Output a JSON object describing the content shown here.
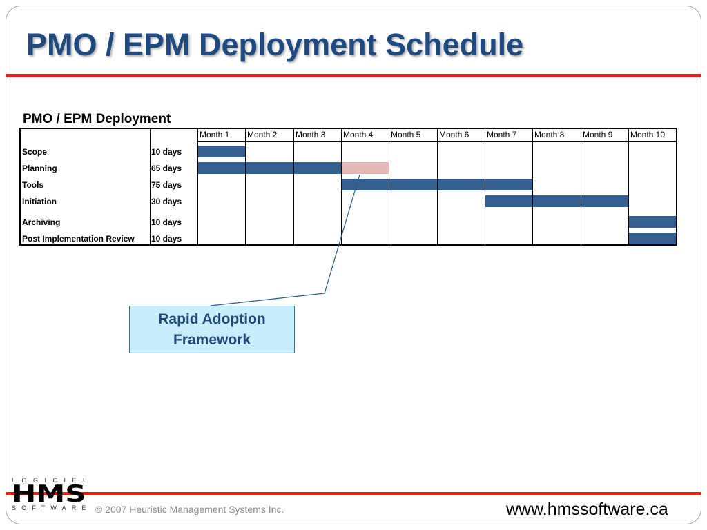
{
  "slide": {
    "title": "PMO / EPM Deployment Schedule"
  },
  "theme_colors": {
    "title": "#1f4a80",
    "accent_line": "#e3201b",
    "callout_fill": "#c9eefb",
    "callout_border": "#3a6c98",
    "callout_text": "#1f497d",
    "frame": "#a6a6a6"
  },
  "chart_data": {
    "type": "bar",
    "orientation": "horizontal",
    "variant": "gantt",
    "title": "PMO / EPM Deployment",
    "x_tick_labels": [
      "Month 1",
      "Month 2",
      "Month 3",
      "Month 4",
      "Month 5",
      "Month 6",
      "Month 7",
      "Month 8",
      "Month 9",
      "Month 10"
    ],
    "xlim": [
      1,
      10
    ],
    "grid": true,
    "tasks": [
      {
        "name": "Scope",
        "duration": "10 days",
        "segments": [
          {
            "start_month": 1,
            "end_month": 1,
            "color": "#365f91"
          }
        ]
      },
      {
        "name": "Planning",
        "duration": "65 days",
        "segments": [
          {
            "start_month": 1,
            "end_month": 3,
            "color": "#365f91"
          },
          {
            "start_month": 4,
            "end_month": 4,
            "color": "#e6b9b8"
          }
        ]
      },
      {
        "name": "Tools",
        "duration": "75 days",
        "segments": [
          {
            "start_month": 4,
            "end_month": 7,
            "color": "#365f91"
          }
        ]
      },
      {
        "name": "Initiation",
        "duration": "30 days",
        "segments": [
          {
            "start_month": 7,
            "end_month": 9,
            "color": "#365f91"
          }
        ]
      },
      {
        "name": "Archiving",
        "duration": "10 days",
        "segments": [
          {
            "start_month": 10,
            "end_month": 10,
            "color": "#365f91"
          }
        ]
      },
      {
        "name": "Post Implementation Review",
        "duration": "10 days",
        "segments": [
          {
            "start_month": 10,
            "end_month": 10,
            "color": "#365f91"
          }
        ]
      }
    ]
  },
  "callout": {
    "text": "Rapid Adoption Framework"
  },
  "footer": {
    "logo": {
      "top": "LOGICIEL",
      "wordmark": "HMS",
      "bottom": "SOFTWARE"
    },
    "copyright": "© 2007 Heuristic Management Systems Inc.",
    "website": "www.hmssoftware.ca"
  }
}
